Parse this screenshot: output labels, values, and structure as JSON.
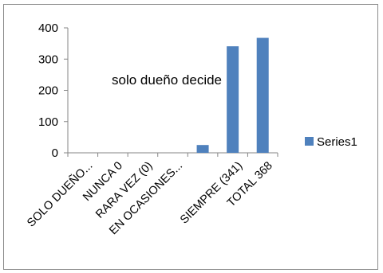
{
  "chart_data": {
    "type": "bar",
    "title": "solo dueño decide",
    "categories": [
      "SOLO DUEÑO...",
      "NUNCA 0",
      "RARA VEZ (0)",
      "EN OCASIONES...",
      "",
      "SIEMPRE (341)",
      "TOTAL 368"
    ],
    "series": [
      {
        "name": "Series1",
        "values": [
          0,
          0,
          0,
          0,
          25,
          341,
          368
        ]
      }
    ],
    "yticks": [
      0,
      100,
      200,
      300,
      400
    ],
    "ylim": [
      0,
      400
    ],
    "grid": false,
    "legend_position": "right",
    "colors": {
      "bar": "#4f81bd",
      "axis": "#868686",
      "frame": "#8c8c8c"
    }
  }
}
